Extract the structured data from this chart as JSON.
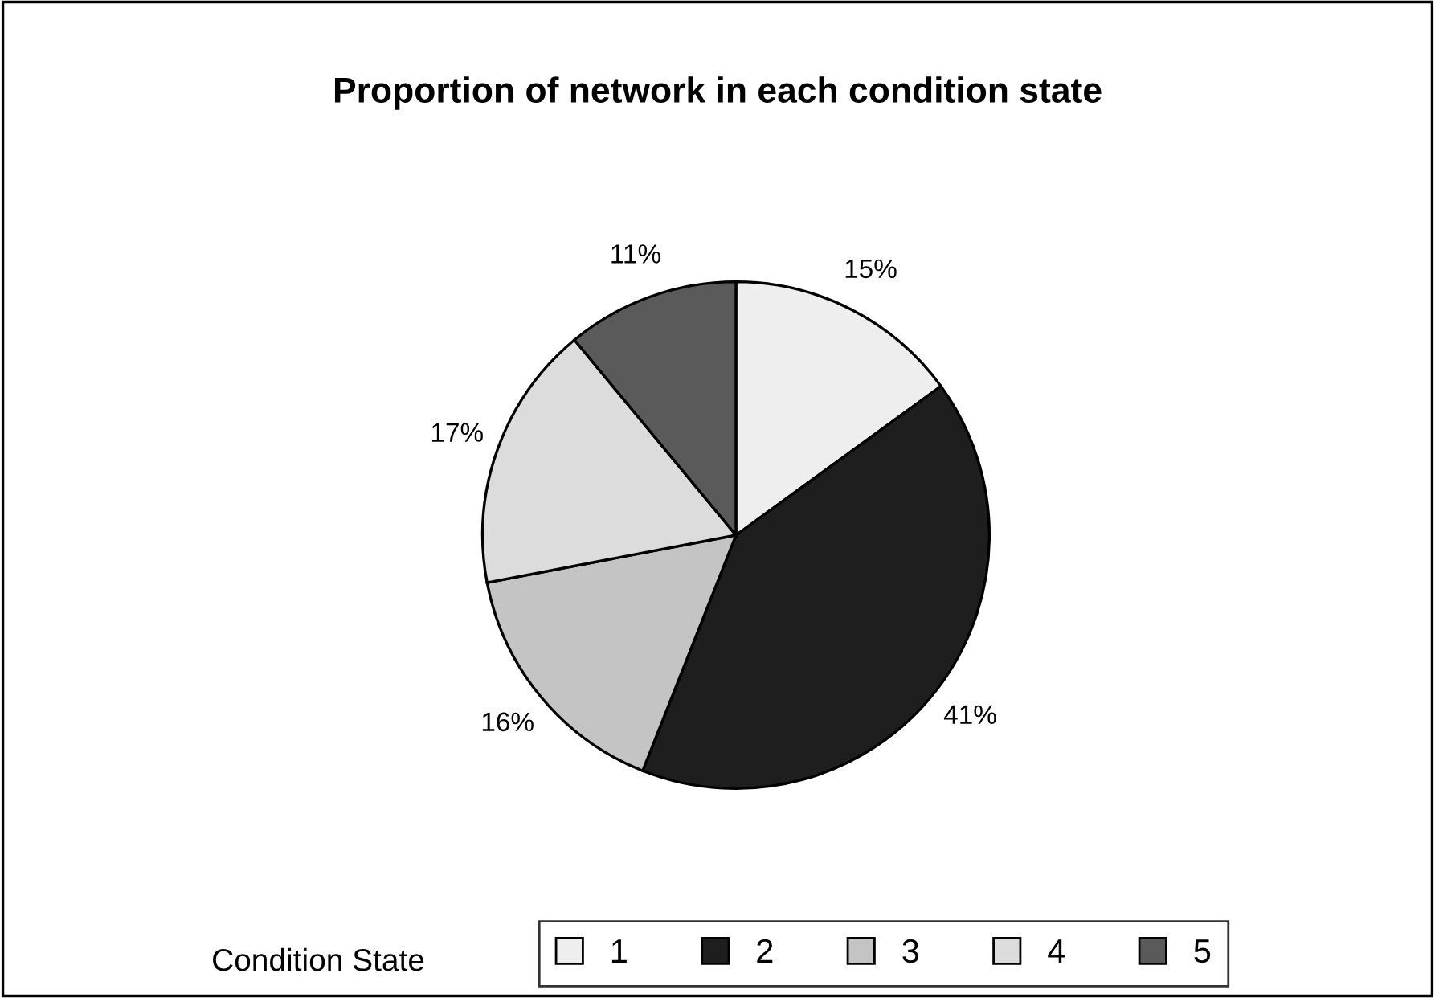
{
  "chart_data": {
    "type": "pie",
    "title": "Proportion of network in each condition state",
    "legend_title": "Condition State",
    "categories": [
      "1",
      "2",
      "3",
      "4",
      "5"
    ],
    "values": [
      15,
      41,
      16,
      17,
      11
    ],
    "colors": [
      "#eeeeee",
      "#1e1e1e",
      "#c4c4c4",
      "#dcdcdc",
      "#5a5a5a"
    ],
    "value_labels": [
      "15%",
      "41%",
      "16%",
      "17%",
      "11%"
    ],
    "legend": "bottom"
  }
}
